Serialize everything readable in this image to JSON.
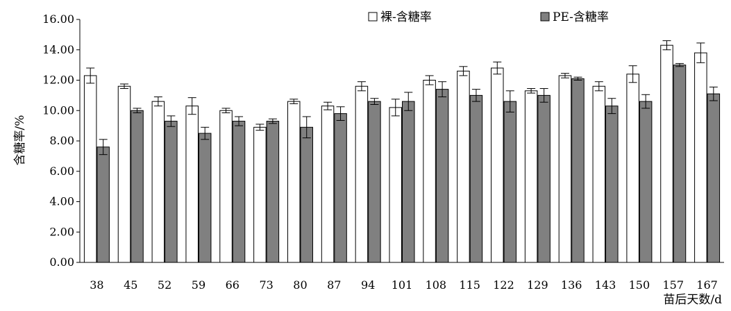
{
  "chart_data": {
    "type": "bar",
    "title": "",
    "xlabel": "苗后天数/d",
    "ylabel": "含糖率/%",
    "ylim": [
      0,
      16
    ],
    "yticks": [
      "0.00",
      "2.00",
      "4.00",
      "6.00",
      "8.00",
      "10.00",
      "12.00",
      "14.00",
      "16.00"
    ],
    "categories": [
      "38",
      "45",
      "52",
      "59",
      "66",
      "73",
      "80",
      "87",
      "94",
      "101",
      "108",
      "115",
      "122",
      "129",
      "136",
      "143",
      "150",
      "157",
      "167"
    ],
    "grid": false,
    "legend_position": "top",
    "series": [
      {
        "name": "裸-含糖率",
        "color": "#ffffff",
        "values": [
          12.3,
          11.6,
          10.6,
          10.3,
          10.0,
          8.9,
          10.6,
          10.3,
          11.6,
          10.2,
          12.0,
          12.6,
          12.8,
          11.3,
          12.3,
          11.6,
          12.4,
          14.3,
          13.8
        ],
        "errors": [
          0.5,
          0.15,
          0.3,
          0.55,
          0.15,
          0.2,
          0.15,
          0.25,
          0.3,
          0.55,
          0.3,
          0.3,
          0.4,
          0.15,
          0.15,
          0.3,
          0.55,
          0.3,
          0.65
        ]
      },
      {
        "name": "PE-含糖率",
        "color": "#808080",
        "values": [
          7.6,
          10.0,
          9.3,
          8.5,
          9.3,
          9.3,
          8.9,
          9.8,
          10.6,
          10.6,
          11.4,
          11.0,
          10.6,
          11.0,
          12.1,
          10.3,
          10.6,
          13.0,
          11.1
        ],
        "errors": [
          0.5,
          0.15,
          0.35,
          0.4,
          0.3,
          0.15,
          0.7,
          0.45,
          0.2,
          0.6,
          0.5,
          0.4,
          0.7,
          0.45,
          0.1,
          0.5,
          0.45,
          0.1,
          0.45
        ]
      }
    ]
  }
}
